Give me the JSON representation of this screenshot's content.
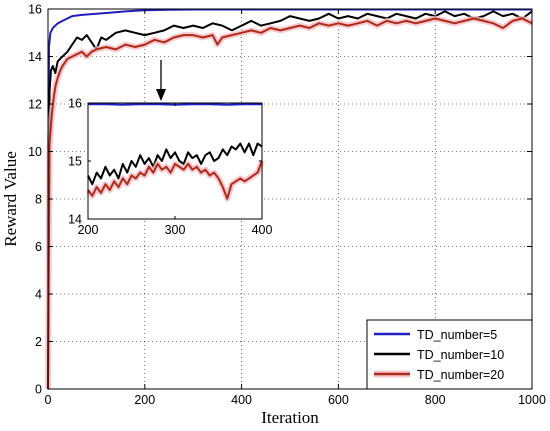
{
  "chart_data": {
    "type": "line",
    "xlabel": "Iteration",
    "ylabel": "Reward Value",
    "xlim": [
      0,
      1000
    ],
    "ylim": [
      0,
      16
    ],
    "xticks": [
      "0",
      "200",
      "400",
      "600",
      "800",
      "1000"
    ],
    "yticks": [
      "0",
      "2",
      "4",
      "6",
      "8",
      "10",
      "12",
      "14",
      "16"
    ],
    "grid": "dotted",
    "legend_position": "bottom-right",
    "series": [
      {
        "name": "TD_number=5",
        "color": "#1f1fbf",
        "x": [
          0,
          2,
          5,
          10,
          20,
          30,
          50,
          70,
          100,
          130,
          160,
          200,
          250,
          300,
          400,
          500,
          600,
          700,
          800,
          900,
          1000
        ],
        "y": [
          0,
          14.4,
          15.0,
          15.2,
          15.4,
          15.5,
          15.7,
          15.75,
          15.8,
          15.85,
          15.9,
          15.95,
          15.97,
          15.98,
          15.98,
          15.98,
          15.98,
          15.98,
          15.98,
          15.98,
          15.98
        ]
      },
      {
        "name": "TD_number=10",
        "color": "#000000",
        "x": [
          0,
          3,
          6,
          10,
          15,
          20,
          30,
          40,
          50,
          60,
          70,
          80,
          90,
          100,
          110,
          120,
          140,
          160,
          180,
          200,
          220,
          240,
          260,
          280,
          300,
          320,
          340,
          360,
          380,
          400,
          420,
          440,
          460,
          480,
          500,
          520,
          540,
          560,
          580,
          600,
          620,
          640,
          660,
          680,
          700,
          720,
          740,
          760,
          780,
          800,
          820,
          840,
          860,
          880,
          900,
          920,
          940,
          960,
          980,
          1000
        ],
        "y": [
          0,
          12.5,
          13.4,
          13.6,
          13.3,
          13.8,
          14.0,
          14.2,
          14.5,
          14.8,
          14.7,
          14.9,
          14.6,
          14.3,
          14.8,
          14.7,
          15.0,
          15.1,
          15.0,
          14.9,
          15.0,
          15.1,
          15.3,
          15.2,
          15.3,
          15.2,
          15.4,
          15.3,
          15.1,
          15.3,
          15.5,
          15.3,
          15.4,
          15.5,
          15.7,
          15.6,
          15.5,
          15.6,
          15.8,
          15.6,
          15.7,
          15.6,
          15.8,
          15.7,
          15.6,
          15.8,
          15.7,
          15.6,
          15.8,
          15.7,
          15.9,
          15.7,
          15.8,
          15.6,
          15.7,
          15.9,
          15.7,
          15.8,
          15.6,
          15.9
        ]
      },
      {
        "name": "TD_number=20",
        "color": "#b02a1a",
        "x": [
          0,
          3,
          5,
          8,
          12,
          16,
          20,
          25,
          30,
          40,
          50,
          60,
          70,
          80,
          90,
          100,
          120,
          140,
          160,
          180,
          200,
          220,
          240,
          260,
          280,
          300,
          320,
          340,
          350,
          360,
          380,
          400,
          420,
          440,
          460,
          480,
          500,
          520,
          540,
          560,
          580,
          600,
          620,
          640,
          660,
          680,
          700,
          720,
          740,
          760,
          780,
          800,
          820,
          840,
          860,
          880,
          900,
          920,
          940,
          960,
          980,
          1000
        ],
        "y": [
          0,
          10.3,
          10.8,
          11.6,
          12.3,
          12.8,
          13.1,
          13.4,
          13.6,
          13.9,
          14.0,
          14.1,
          14.2,
          14.0,
          14.2,
          14.3,
          14.4,
          14.3,
          14.5,
          14.4,
          14.5,
          14.7,
          14.6,
          14.8,
          14.9,
          14.9,
          14.8,
          14.9,
          14.5,
          14.8,
          14.9,
          15.0,
          15.1,
          15.0,
          15.2,
          15.1,
          15.2,
          15.3,
          15.2,
          15.4,
          15.3,
          15.4,
          15.3,
          15.4,
          15.5,
          15.3,
          15.5,
          15.4,
          15.5,
          15.4,
          15.5,
          15.6,
          15.5,
          15.4,
          15.5,
          15.6,
          15.5,
          15.4,
          15.2,
          15.5,
          15.6,
          15.4
        ]
      }
    ],
    "inset": {
      "xlim": [
        200,
        400
      ],
      "ylim": [
        14,
        16
      ],
      "xticks": [
        "200",
        "300",
        "400"
      ],
      "yticks": [
        "14",
        "15",
        "16"
      ],
      "series": [
        {
          "name": "TD_number=5",
          "color": "#1f1fbf",
          "x": [
            200,
            220,
            240,
            260,
            280,
            300,
            320,
            340,
            360,
            380,
            400
          ],
          "y": [
            15.98,
            15.98,
            15.97,
            15.98,
            15.98,
            15.97,
            15.98,
            15.98,
            15.97,
            15.98,
            15.98
          ]
        },
        {
          "name": "TD_number=10",
          "color": "#000000",
          "x": [
            200,
            205,
            210,
            215,
            220,
            225,
            230,
            235,
            240,
            245,
            250,
            255,
            260,
            265,
            270,
            275,
            280,
            285,
            290,
            295,
            300,
            305,
            310,
            315,
            320,
            325,
            330,
            335,
            340,
            345,
            350,
            355,
            360,
            365,
            370,
            375,
            380,
            385,
            390,
            395,
            400
          ],
          "y": [
            14.75,
            14.6,
            14.8,
            14.7,
            14.9,
            14.75,
            14.85,
            14.7,
            14.95,
            14.8,
            15.0,
            14.9,
            15.1,
            14.95,
            15.05,
            14.9,
            15.1,
            15.0,
            15.2,
            15.05,
            15.15,
            15.0,
            14.95,
            15.15,
            15.05,
            15.1,
            14.95,
            15.1,
            15.15,
            15.0,
            15.05,
            15.2,
            15.1,
            15.25,
            15.2,
            15.3,
            15.15,
            15.3,
            15.1,
            15.3,
            15.25
          ]
        },
        {
          "name": "TD_number=20",
          "color": "#b02a1a",
          "x": [
            200,
            205,
            210,
            215,
            220,
            225,
            230,
            235,
            240,
            245,
            250,
            255,
            260,
            265,
            270,
            275,
            280,
            285,
            290,
            295,
            300,
            305,
            310,
            315,
            320,
            325,
            330,
            335,
            340,
            345,
            350,
            355,
            360,
            365,
            370,
            375,
            380,
            385,
            390,
            395,
            400
          ],
          "y": [
            14.5,
            14.4,
            14.55,
            14.45,
            14.6,
            14.5,
            14.65,
            14.55,
            14.7,
            14.6,
            14.75,
            14.7,
            14.8,
            14.75,
            14.9,
            14.8,
            14.95,
            14.85,
            14.9,
            14.8,
            14.95,
            14.9,
            14.85,
            14.95,
            14.85,
            14.9,
            14.8,
            14.85,
            14.75,
            14.8,
            14.7,
            14.55,
            14.35,
            14.6,
            14.65,
            14.7,
            14.65,
            14.7,
            14.75,
            14.8,
            15.0
          ]
        }
      ]
    }
  }
}
